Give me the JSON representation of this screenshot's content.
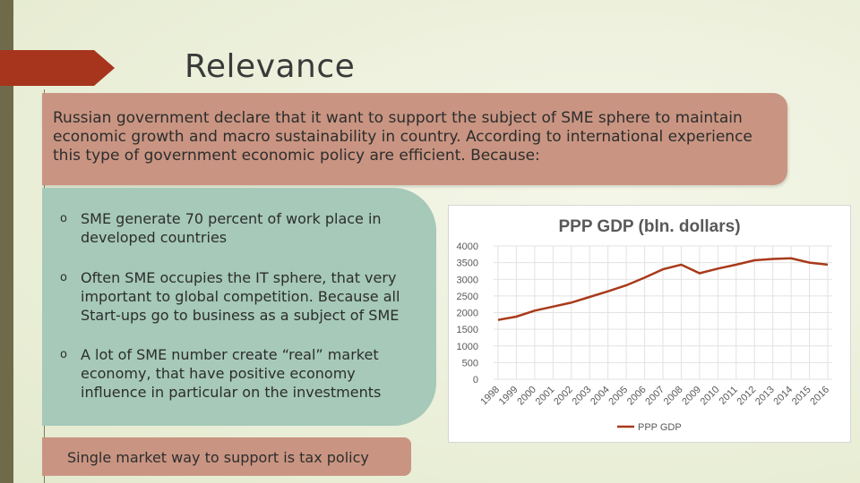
{
  "slide": {
    "title": "Relevance",
    "intro": "Russian government declare that it want to support the subject of SME sphere to maintain economic growth and macro sustainability in country. According to international experience this type of government economic policy are efficient. Because:",
    "bullets": [
      {
        "marker": "o",
        "text": "SME generate 70 percent of work place in developed countries"
      },
      {
        "marker": "o",
        "text": "Often SME occupies the IT sphere, that very important to global competition. Because all Start-ups go to business as a subject of SME"
      },
      {
        "marker": "o",
        "text": "A lot of SME number create “real” market economy, that have positive economy influence in particular on the investments"
      }
    ],
    "footer": "Single market way to support is tax policy"
  },
  "colors": {
    "accent_arrow": "#a7351d",
    "intro_box": "#c99582",
    "bullet_box": "#a6c9b9",
    "line": "#a83a1a"
  },
  "chart_data": {
    "type": "line",
    "title": "PPP GDP (bln. dollars)",
    "categories": [
      "1998",
      "1999",
      "2000",
      "2001",
      "2002",
      "2003",
      "2004",
      "2005",
      "2006",
      "2007",
      "2008",
      "2009",
      "2010",
      "2011",
      "2012",
      "2013",
      "2014",
      "2015",
      "2016"
    ],
    "series": [
      {
        "name": "PPP GDP",
        "values": [
          1780,
          1880,
          2060,
          2180,
          2300,
          2470,
          2640,
          2820,
          3050,
          3300,
          3440,
          3180,
          3320,
          3440,
          3570,
          3610,
          3630,
          3500,
          3440
        ]
      }
    ],
    "ylim": [
      0,
      4000
    ],
    "yticks": [
      "0",
      "500",
      "1000",
      "1500",
      "2000",
      "2500",
      "3000",
      "3500",
      "4000"
    ],
    "grid": true,
    "legend_position": "bottom"
  }
}
